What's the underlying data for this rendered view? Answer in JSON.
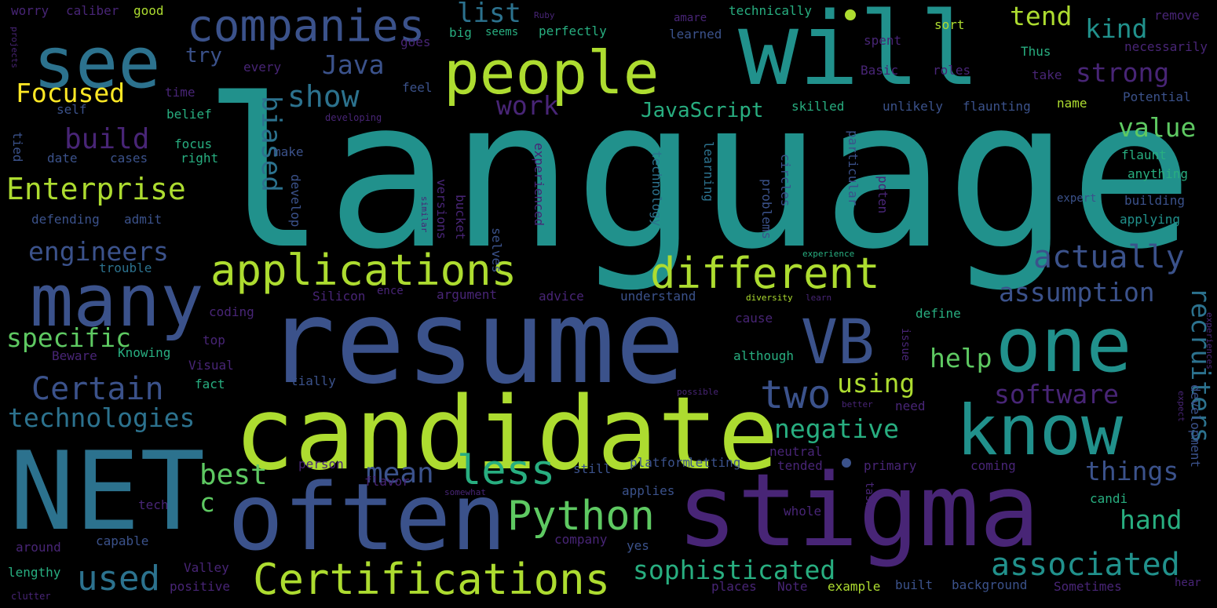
{
  "palette": {
    "background": "#000000",
    "deep_purple": "#440154",
    "purple": "#482576",
    "indigo": "#3b528b",
    "blue": "#2c728e",
    "teal": "#21918c",
    "green_teal": "#28ae80",
    "green": "#5ec962",
    "yellow_green": "#addc30",
    "yellow": "#fde725"
  },
  "words": [
    {
      "text": "language",
      "color": "teal"
    },
    {
      "text": "resume",
      "color": "indigo"
    },
    {
      "text": "candidate",
      "color": "yellow_green"
    },
    {
      "text": "NET",
      "color": "blue"
    },
    {
      "text": "stigma",
      "color": "purple"
    },
    {
      "text": "often",
      "color": "indigo"
    },
    {
      "text": "will",
      "color": "teal"
    },
    {
      "text": "see",
      "color": "blue"
    },
    {
      "text": "people",
      "color": "yellow_green"
    },
    {
      "text": "many",
      "color": "indigo"
    },
    {
      "text": "one",
      "color": "teal"
    },
    {
      "text": "know",
      "color": "teal"
    },
    {
      "text": "VB",
      "color": "indigo"
    },
    {
      "text": "companies",
      "color": "indigo"
    },
    {
      "text": "applications",
      "color": "yellow_green"
    },
    {
      "text": "different",
      "color": "yellow_green"
    },
    {
      "text": "Certifications",
      "color": "yellow_green"
    },
    {
      "text": "Python",
      "color": "green"
    },
    {
      "text": "less",
      "color": "green_teal"
    },
    {
      "text": "Enterprise",
      "color": "yellow_green"
    },
    {
      "text": "two",
      "color": "indigo"
    },
    {
      "text": "Certain",
      "color": "indigo"
    },
    {
      "text": "technologies",
      "color": "blue"
    },
    {
      "text": "engineers",
      "color": "indigo"
    },
    {
      "text": "Focused",
      "color": "yellow"
    },
    {
      "text": "build",
      "color": "purple"
    },
    {
      "text": "show",
      "color": "blue"
    },
    {
      "text": "Java",
      "color": "indigo"
    },
    {
      "text": "list",
      "color": "blue"
    },
    {
      "text": "try",
      "color": "indigo"
    },
    {
      "text": "work",
      "color": "purple"
    },
    {
      "text": "JavaScript",
      "color": "green_teal"
    },
    {
      "text": "biased",
      "color": "blue"
    },
    {
      "text": "tend",
      "color": "yellow_green"
    },
    {
      "text": "kind",
      "color": "teal"
    },
    {
      "text": "strong",
      "color": "purple"
    },
    {
      "text": "value",
      "color": "green"
    },
    {
      "text": "actually",
      "color": "indigo"
    },
    {
      "text": "assumption",
      "color": "indigo"
    },
    {
      "text": "recruiters",
      "color": "blue"
    },
    {
      "text": "help",
      "color": "green"
    },
    {
      "text": "software",
      "color": "purple"
    },
    {
      "text": "using",
      "color": "yellow_green"
    },
    {
      "text": "negative",
      "color": "green_teal"
    },
    {
      "text": "mean",
      "color": "indigo"
    },
    {
      "text": "best",
      "color": "green"
    },
    {
      "text": "specific",
      "color": "green"
    },
    {
      "text": "things",
      "color": "indigo"
    },
    {
      "text": "hand",
      "color": "green_teal"
    },
    {
      "text": "sophisticated",
      "color": "green_teal"
    },
    {
      "text": "associated",
      "color": "teal"
    },
    {
      "text": "used",
      "color": "blue"
    },
    {
      "text": "c",
      "color": "green"
    },
    {
      "text": "worry",
      "color": "purple"
    },
    {
      "text": "caliber",
      "color": "purple"
    },
    {
      "text": "good",
      "color": "yellow_green"
    },
    {
      "text": "seems",
      "color": "green_teal"
    },
    {
      "text": "perfectly",
      "color": "green_teal"
    },
    {
      "text": "amare",
      "color": "purple"
    },
    {
      "text": "technically",
      "color": "green_teal"
    },
    {
      "text": "remove",
      "color": "purple"
    },
    {
      "text": "necessarily",
      "color": "purple"
    },
    {
      "text": "learned",
      "color": "indigo"
    },
    {
      "text": "spent",
      "color": "purple"
    },
    {
      "text": "sort",
      "color": "yellow_green"
    },
    {
      "text": "Thus",
      "color": "green_teal"
    },
    {
      "text": "take",
      "color": "purple"
    },
    {
      "text": "Basic",
      "color": "purple"
    },
    {
      "text": "roles",
      "color": "purple"
    },
    {
      "text": "big",
      "color": "green_teal"
    },
    {
      "text": "goes",
      "color": "purple"
    },
    {
      "text": "every",
      "color": "purple"
    },
    {
      "text": "feel",
      "color": "indigo"
    },
    {
      "text": "skilled",
      "color": "green_teal"
    },
    {
      "text": "unlikely",
      "color": "indigo"
    },
    {
      "text": "flaunting",
      "color": "indigo"
    },
    {
      "text": "name",
      "color": "yellow_green"
    },
    {
      "text": "Potential",
      "color": "indigo"
    },
    {
      "text": "self",
      "color": "indigo"
    },
    {
      "text": "time",
      "color": "purple"
    },
    {
      "text": "belief",
      "color": "green_teal"
    },
    {
      "text": "developing",
      "color": "purple"
    },
    {
      "text": "focus",
      "color": "green_teal"
    },
    {
      "text": "make",
      "color": "indigo"
    },
    {
      "text": "date",
      "color": "indigo"
    },
    {
      "text": "cases",
      "color": "indigo"
    },
    {
      "text": "right",
      "color": "green_teal"
    },
    {
      "text": "flaunt",
      "color": "green_teal"
    },
    {
      "text": "anything",
      "color": "green_teal"
    },
    {
      "text": "defending",
      "color": "indigo"
    },
    {
      "text": "admit",
      "color": "indigo"
    },
    {
      "text": "building",
      "color": "indigo"
    },
    {
      "text": "applying",
      "color": "teal"
    },
    {
      "text": "expert",
      "color": "indigo"
    },
    {
      "text": "trouble",
      "color": "blue"
    },
    {
      "text": "Silicon",
      "color": "purple"
    },
    {
      "text": "argument",
      "color": "purple"
    },
    {
      "text": "advice",
      "color": "purple"
    },
    {
      "text": "understand",
      "color": "indigo"
    },
    {
      "text": "diversity",
      "color": "yellow_green"
    },
    {
      "text": "learn",
      "color": "purple"
    },
    {
      "text": "cause",
      "color": "purple"
    },
    {
      "text": "define",
      "color": "green_teal"
    },
    {
      "text": "coding",
      "color": "purple"
    },
    {
      "text": "top",
      "color": "purple"
    },
    {
      "text": "Beware",
      "color": "purple"
    },
    {
      "text": "Knowing",
      "color": "green_teal"
    },
    {
      "text": "Visual",
      "color": "purple"
    },
    {
      "text": "fact",
      "color": "green_teal"
    },
    {
      "text": "although",
      "color": "green_teal"
    },
    {
      "text": "tially",
      "color": "indigo"
    },
    {
      "text": "possible",
      "color": "purple"
    },
    {
      "text": "better",
      "color": "purple"
    },
    {
      "text": "need",
      "color": "purple"
    },
    {
      "text": "neutral",
      "color": "purple"
    },
    {
      "text": "tended",
      "color": "purple"
    },
    {
      "text": "primary",
      "color": "purple"
    },
    {
      "text": "coming",
      "color": "purple"
    },
    {
      "text": "platform",
      "color": "indigo"
    },
    {
      "text": "letting",
      "color": "indigo"
    },
    {
      "text": "person",
      "color": "purple"
    },
    {
      "text": "still",
      "color": "indigo"
    },
    {
      "text": "flavor",
      "color": "purple"
    },
    {
      "text": "somewhat",
      "color": "purple"
    },
    {
      "text": "applies",
      "color": "indigo"
    },
    {
      "text": "candi",
      "color": "green_teal"
    },
    {
      "text": "tech",
      "color": "purple"
    },
    {
      "text": "whole",
      "color": "purple"
    },
    {
      "text": "around",
      "color": "purple"
    },
    {
      "text": "capable",
      "color": "indigo"
    },
    {
      "text": "company",
      "color": "purple"
    },
    {
      "text": "yes",
      "color": "indigo"
    },
    {
      "text": "lengthy",
      "color": "green_teal"
    },
    {
      "text": "Valley",
      "color": "purple"
    },
    {
      "text": "positive",
      "color": "purple"
    },
    {
      "text": "places",
      "color": "purple"
    },
    {
      "text": "Note",
      "color": "purple"
    },
    {
      "text": "example",
      "color": "yellow_green"
    },
    {
      "text": "built",
      "color": "indigo"
    },
    {
      "text": "background",
      "color": "indigo"
    },
    {
      "text": "Sometimes",
      "color": "purple"
    },
    {
      "text": "hear",
      "color": "purple"
    },
    {
      "text": "clutter",
      "color": "purple"
    },
    {
      "text": "experience",
      "color": "green_teal"
    },
    {
      "text": "ence",
      "color": "purple"
    },
    {
      "text": "Ruby",
      "color": "purple"
    },
    {
      "text": "projects",
      "color": "purple"
    },
    {
      "text": "tied",
      "color": "indigo"
    },
    {
      "text": "develop",
      "color": "indigo"
    },
    {
      "text": "similar",
      "color": "purple"
    },
    {
      "text": "versions",
      "color": "purple"
    },
    {
      "text": "bucket",
      "color": "purple"
    },
    {
      "text": "selves",
      "color": "indigo"
    },
    {
      "text": "experienced",
      "color": "purple"
    },
    {
      "text": "technology",
      "color": "blue"
    },
    {
      "text": "learning",
      "color": "blue"
    },
    {
      "text": "problems",
      "color": "indigo"
    },
    {
      "text": "circles",
      "color": "indigo"
    },
    {
      "text": "particular",
      "color": "indigo"
    },
    {
      "text": "poten",
      "color": "purple"
    },
    {
      "text": "issue",
      "color": "purple"
    },
    {
      "text": "task",
      "color": "purple"
    },
    {
      "text": "development",
      "color": "indigo"
    },
    {
      "text": "experiences",
      "color": "purple"
    },
    {
      "text": "expect",
      "color": "purple"
    }
  ]
}
